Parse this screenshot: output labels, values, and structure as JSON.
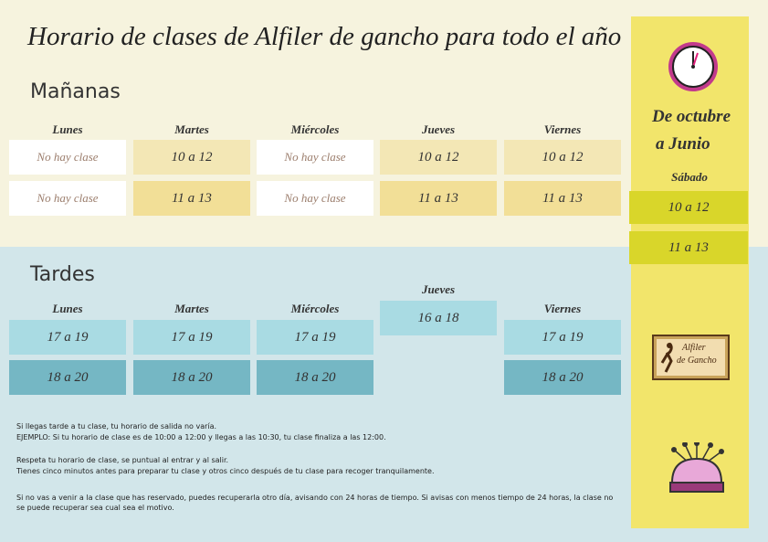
{
  "title": "Horario de clases de Alfiler de gancho para todo el año",
  "morning": {
    "heading": "Mañanas",
    "days": [
      "Lunes",
      "Martes",
      "Miércoles",
      "Jueves",
      "Viernes"
    ],
    "rows": [
      [
        "No hay clase",
        "10 a 12",
        "No hay clase",
        "10 a 12",
        "10 a 12"
      ],
      [
        "No hay clase",
        "11 a 13",
        "No hay clase",
        "11 a 13",
        "11 a 13"
      ]
    ]
  },
  "afternoon": {
    "heading": "Tardes",
    "columns": [
      {
        "day": "Lunes",
        "slots": [
          "17 a 19",
          "18 a 20"
        ]
      },
      {
        "day": "Martes",
        "slots": [
          "17 a 19",
          "18 a 20"
        ]
      },
      {
        "day": "Miércoles",
        "slots": [
          "17 a 19",
          "18 a 20"
        ]
      },
      {
        "day": "Jueves",
        "slots": [
          "16 a 18"
        ]
      },
      {
        "day": "Viernes",
        "slots": [
          "17 a 19",
          "18 a 20"
        ]
      }
    ]
  },
  "sidebar": {
    "period": [
      "De octubre",
      "a Junio"
    ],
    "day": "Sábado",
    "slots": [
      "10 a 12",
      "11 a 13"
    ],
    "logo": [
      "Alfiler",
      "de Gancho"
    ]
  },
  "notes": [
    "Si llegas tarde a tu clase, tu horario de salida no varía.",
    "EJEMPLO: Si tu horario de clase es de 10:00 a 12:00 y llegas a las 10:30, tu clase finaliza a las 12:00.",
    "Respeta tu horario de clase, se puntual al entrar y al salir.",
    "Tienes cinco minutos antes para preparar tu clase y otros cinco después de tu clase para recoger tranquilamente.",
    "Si no vas a venir a la clase que has reservado, puedes recuperarla otro día, avisando con 24 horas de tiempo. Si avisas con menos tiempo de 24 horas, la clase no se puede recuperar sea cual sea el motivo."
  ]
}
